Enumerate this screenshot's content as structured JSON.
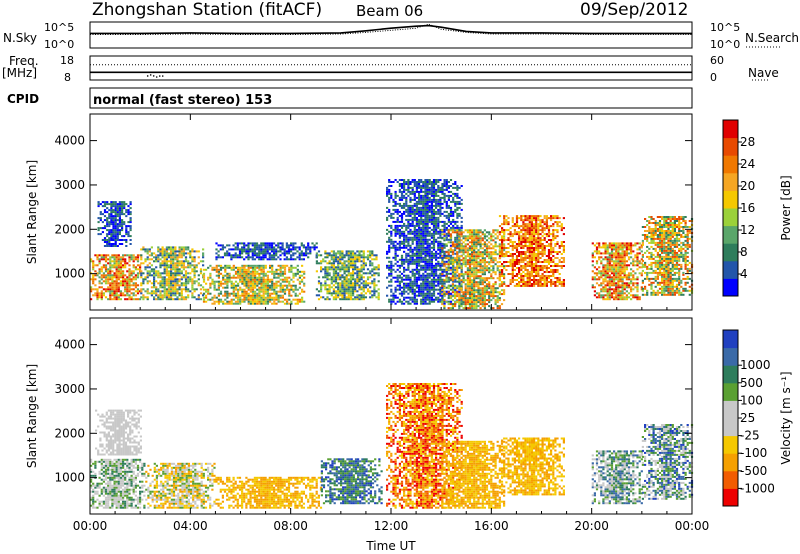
{
  "header": {
    "station": "Zhongshan Station (fitACF)",
    "beam": "Beam 06",
    "date": "09/Sep/2012",
    "mode": "normal (fast stereo) 153"
  },
  "side_labels": {
    "nsky": "N.Sky",
    "nsearch": "N.Search",
    "freq": "Freq.",
    "mhz": "[MHz]",
    "nave": "Nave",
    "cpid": "CPID"
  },
  "colors": {
    "power": [
      "#0000ff",
      "#2255aa",
      "#2e7d5c",
      "#5aa66a",
      "#9bd13a",
      "#f5c800",
      "#f5a623",
      "#f07800",
      "#e84a00",
      "#e00000"
    ],
    "velocity": [
      "#ee0000",
      "#f25c00",
      "#f5a000",
      "#f5c800",
      "#c8c8c8",
      "#c8c8c8",
      "#5aa032",
      "#2e7d5c",
      "#3a6aa8",
      "#2040c0"
    ]
  },
  "chart_data": [
    {
      "type": "line",
      "name": "noise",
      "ylabel_left": "N.Sky",
      "ylabel_right": "N.Search",
      "left_ticks": [
        "10^5",
        "10^0"
      ],
      "right_ticks": [
        "10^5",
        "10^0"
      ],
      "x": [
        0,
        2,
        4,
        6,
        8,
        10,
        11,
        12,
        12.5,
        13,
        13.5,
        14,
        14.5,
        15,
        16,
        18,
        20,
        22,
        24
      ],
      "series": [
        {
          "name": "N.Sky",
          "values": [
            2.8,
            2.8,
            2.9,
            2.8,
            2.8,
            2.9,
            3.3,
            3.8,
            4.0,
            4.2,
            4.3,
            4.0,
            3.6,
            3.2,
            2.9,
            2.9,
            2.8,
            2.8,
            2.8
          ]
        },
        {
          "name": "N.Search",
          "values": [
            2.6,
            2.6,
            2.7,
            2.6,
            2.6,
            2.7,
            3.0,
            3.4,
            3.6,
            3.8,
            4.6,
            3.6,
            3.3,
            3.0,
            2.7,
            2.7,
            2.6,
            2.6,
            2.6
          ]
        }
      ]
    },
    {
      "type": "line",
      "name": "frequency",
      "ylabel_left": "Freq. [MHz]",
      "ylabel_right": "Nave",
      "left_ticks": [
        "18",
        "8"
      ],
      "right_ticks": [
        "60",
        "0"
      ],
      "freq_mhz": 11.2,
      "nave_level": 38,
      "dip_hours": [
        2.3,
        3.0
      ]
    },
    {
      "type": "heatmap",
      "name": "power",
      "ylabel": "Slant Range [km]",
      "colorbar_label": "Power [dB]",
      "colorbar_ticks": [
        "4",
        "8",
        "12",
        "16",
        "20",
        "24",
        "28"
      ],
      "xlim": [
        0,
        24
      ],
      "ylim": [
        180,
        4600
      ],
      "yticks": [
        1000,
        2000,
        3000,
        4000
      ],
      "xticks": [
        "00:00",
        "04:00",
        "08:00",
        "12:00",
        "16:00",
        "20:00",
        "00:00"
      ],
      "regions": [
        {
          "t": [
            0.0,
            2.0
          ],
          "r": [
            400,
            1400
          ],
          "level": [
            3,
            9
          ]
        },
        {
          "t": [
            0.3,
            1.6
          ],
          "r": [
            1600,
            2600
          ],
          "level": [
            0,
            2
          ]
        },
        {
          "t": [
            2.0,
            4.5
          ],
          "r": [
            400,
            1600
          ],
          "level": [
            1,
            6
          ]
        },
        {
          "t": [
            4.5,
            8.5
          ],
          "r": [
            300,
            1200
          ],
          "level": [
            2,
            7
          ]
        },
        {
          "t": [
            5.0,
            9.0
          ],
          "r": [
            1300,
            1700
          ],
          "level": [
            0,
            2
          ]
        },
        {
          "t": [
            9.0,
            11.5
          ],
          "r": [
            400,
            1500
          ],
          "level": [
            1,
            5
          ]
        },
        {
          "t": [
            11.8,
            14.8
          ],
          "r": [
            300,
            3100
          ],
          "level": [
            0,
            2
          ]
        },
        {
          "t": [
            14.0,
            16.5
          ],
          "r": [
            200,
            2000
          ],
          "level": [
            2,
            8
          ]
        },
        {
          "t": [
            16.3,
            18.9
          ],
          "r": [
            700,
            2300
          ],
          "level": [
            5,
            9
          ]
        },
        {
          "t": [
            20.0,
            22.0
          ],
          "r": [
            400,
            1700
          ],
          "level": [
            3,
            9
          ]
        },
        {
          "t": [
            22.0,
            24.0
          ],
          "r": [
            500,
            2300
          ],
          "level": [
            2,
            8
          ]
        }
      ]
    },
    {
      "type": "heatmap",
      "name": "velocity",
      "ylabel": "Slant Range [km]",
      "colorbar_label": "Velocity [m s⁻¹]",
      "colorbar_ticks": [
        "-1000",
        "-500",
        "-100",
        "-25",
        "25",
        "100",
        "500",
        "1000"
      ],
      "xlim": [
        0,
        24
      ],
      "ylim": [
        180,
        4600
      ],
      "yticks": [
        1000,
        2000,
        3000,
        4000
      ],
      "xticks": [
        "00:00",
        "04:00",
        "08:00",
        "12:00",
        "16:00",
        "20:00",
        "00:00"
      ],
      "xlabel": "Time UT",
      "regions": [
        {
          "t": [
            0.0,
            2.2
          ],
          "r": [
            300,
            1400
          ],
          "level": [
            4,
            7
          ]
        },
        {
          "t": [
            0.2,
            2.0
          ],
          "r": [
            1500,
            2500
          ],
          "level": [
            4,
            5
          ]
        },
        {
          "t": [
            2.2,
            5.0
          ],
          "r": [
            300,
            1300
          ],
          "level": [
            2,
            6
          ]
        },
        {
          "t": [
            5.0,
            9.2
          ],
          "r": [
            300,
            1000
          ],
          "level": [
            2,
            3
          ]
        },
        {
          "t": [
            9.2,
            11.6
          ],
          "r": [
            400,
            1400
          ],
          "level": [
            6,
            9
          ]
        },
        {
          "t": [
            11.8,
            14.8
          ],
          "r": [
            300,
            3100
          ],
          "level": [
            0,
            3
          ]
        },
        {
          "t": [
            14.0,
            16.5
          ],
          "r": [
            300,
            1800
          ],
          "level": [
            2,
            3
          ]
        },
        {
          "t": [
            16.3,
            18.9
          ],
          "r": [
            600,
            1900
          ],
          "level": [
            2,
            3
          ]
        },
        {
          "t": [
            20.0,
            22.0
          ],
          "r": [
            400,
            1600
          ],
          "level": [
            4,
            8
          ]
        },
        {
          "t": [
            22.0,
            24.0
          ],
          "r": [
            500,
            2200
          ],
          "level": [
            4,
            9
          ]
        }
      ]
    }
  ]
}
